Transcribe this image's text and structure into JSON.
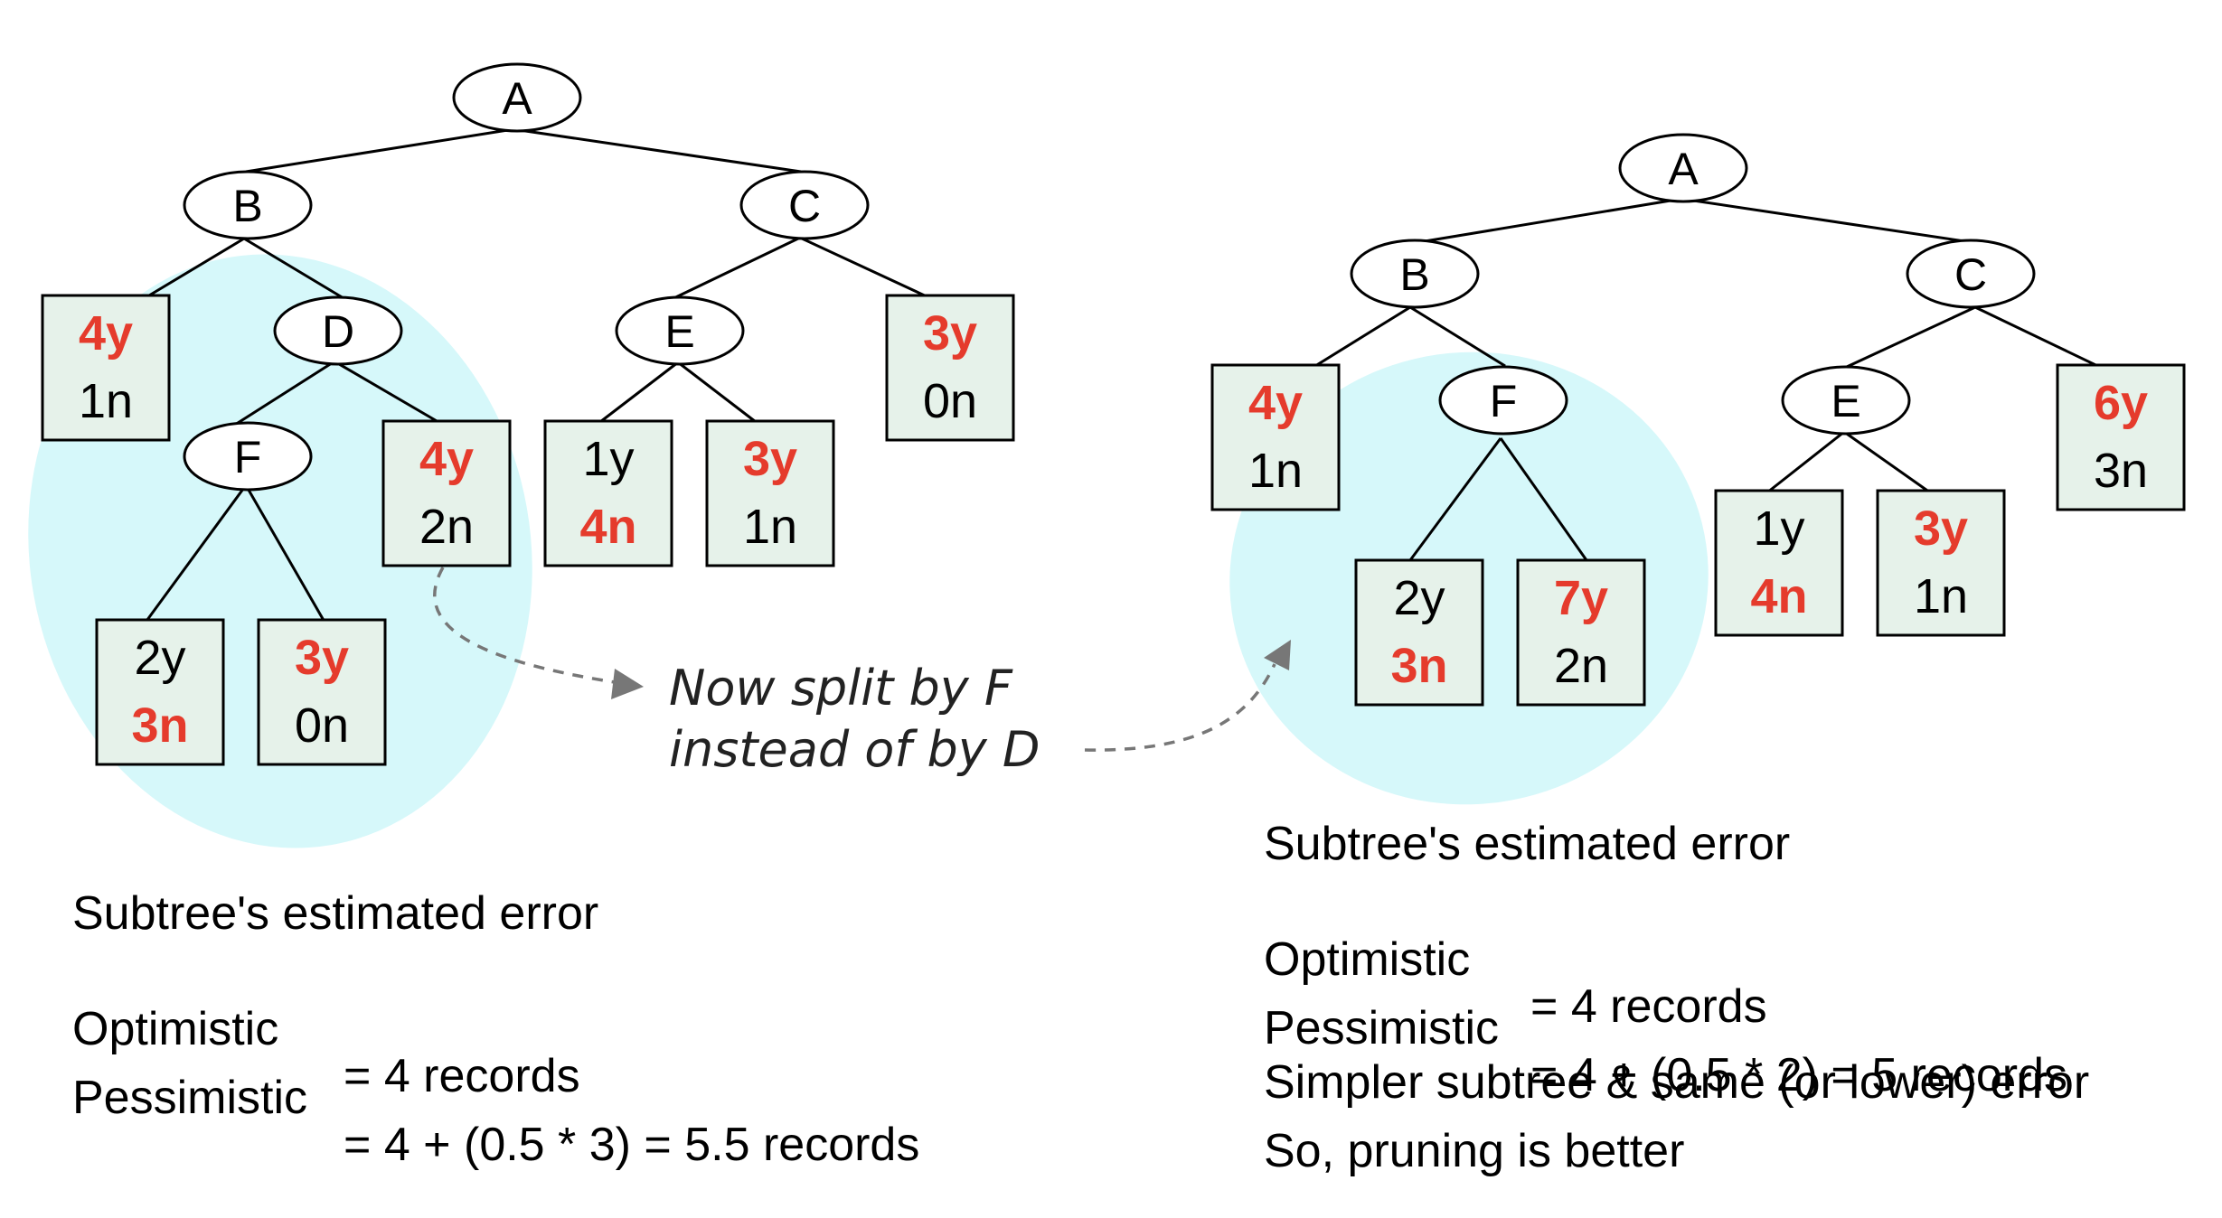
{
  "left_tree": {
    "nodes": {
      "A": "A",
      "B": "B",
      "C": "C",
      "D": "D",
      "E": "E",
      "F": "F"
    },
    "leaves": {
      "B_left": {
        "top": "4y",
        "top_red": true,
        "bottom": "1n",
        "bottom_red": false
      },
      "D_right": {
        "top": "4y",
        "top_red": true,
        "bottom": "2n",
        "bottom_red": false
      },
      "F_left": {
        "top": "2y",
        "top_red": false,
        "bottom": "3n",
        "bottom_red": true
      },
      "F_right": {
        "top": "3y",
        "top_red": true,
        "bottom": "0n",
        "bottom_red": false
      },
      "E_left": {
        "top": "1y",
        "top_red": false,
        "bottom": "4n",
        "bottom_red": true
      },
      "E_right": {
        "top": "3y",
        "top_red": true,
        "bottom": "1n",
        "bottom_red": false
      },
      "C_right": {
        "top": "3y",
        "top_red": true,
        "bottom": "0n",
        "bottom_red": false
      }
    },
    "error": {
      "title": "Subtree's estimated error",
      "optimistic_label": "Optimistic",
      "optimistic_value": "= 4 records",
      "pessimistic_label": "Pessimistic",
      "pessimistic_value": "= 4 + (0.5 * 3) = 5.5 records"
    }
  },
  "right_tree": {
    "nodes": {
      "A": "A",
      "B": "B",
      "C": "C",
      "E": "E",
      "F": "F"
    },
    "leaves": {
      "B_left": {
        "top": "4y",
        "top_red": true,
        "bottom": "1n",
        "bottom_red": false
      },
      "F_left": {
        "top": "2y",
        "top_red": false,
        "bottom": "3n",
        "bottom_red": true
      },
      "F_right": {
        "top": "7y",
        "top_red": true,
        "bottom": "2n",
        "bottom_red": false
      },
      "E_left": {
        "top": "1y",
        "top_red": false,
        "bottom": "4n",
        "bottom_red": true
      },
      "E_right": {
        "top": "3y",
        "top_red": true,
        "bottom": "1n",
        "bottom_red": false
      },
      "C_right": {
        "top": "6y",
        "top_red": true,
        "bottom": "3n",
        "bottom_red": false
      }
    },
    "error": {
      "title": "Subtree's estimated error",
      "optimistic_label": "Optimistic",
      "optimistic_value": "= 4 records",
      "pessimistic_label": "Pessimistic",
      "pessimistic_value": "= 4 + (0.5 * 2) = 5 records"
    },
    "conclusion_line1": "Simpler subtree & same (or lower) error",
    "conclusion_line2": "So, pruning is better"
  },
  "annotation": {
    "line1": "Now split by F",
    "line2": "instead of by D"
  },
  "colors": {
    "highlight": "#d6f8fa",
    "leaf_fill": "#e6f2ea",
    "emphasis_red": "#e53b2c"
  }
}
